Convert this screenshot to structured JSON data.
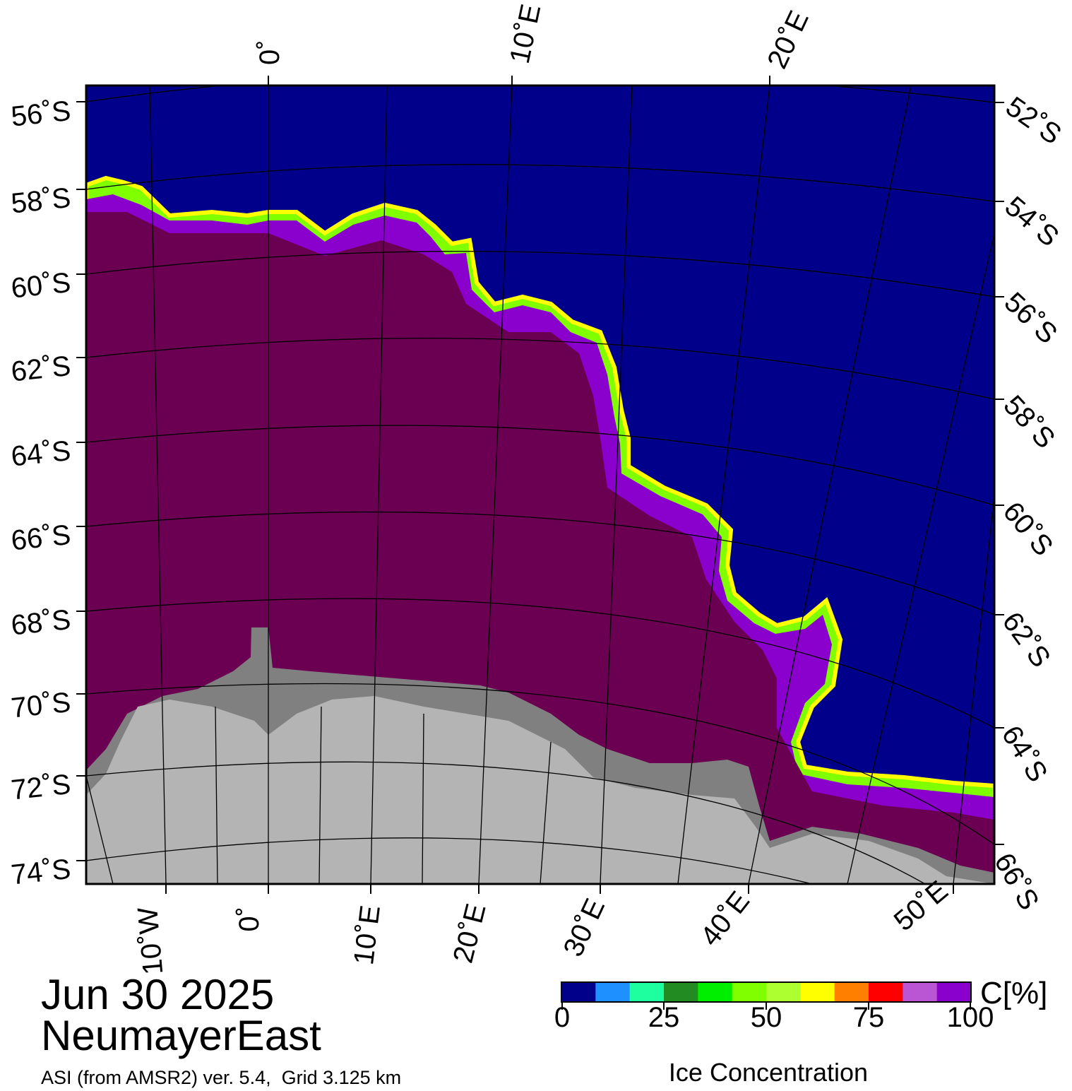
{
  "map": {
    "date": "Jun 30 2025",
    "region": "NeumayerEast",
    "source": "ASI (from AMSR2) ver. 5.4,  Grid 3.125 km",
    "colors": {
      "open_water": "#00008b",
      "ice_full": "#6b0052",
      "ice_high": "#8a00cc",
      "land_shelf": "#808080",
      "land": "#b4b4b4",
      "frame": "#000000"
    },
    "top_lon_labels": [
      "0˚",
      "10˚E",
      "20˚E"
    ],
    "bottom_lon_labels": [
      "10˚W",
      "0˚",
      "10˚E",
      "20˚E",
      "30˚E",
      "40˚E",
      "50˚E"
    ],
    "left_lat_labels": [
      "56˚S",
      "58˚S",
      "60˚S",
      "62˚S",
      "64˚S",
      "66˚S",
      "68˚S",
      "70˚S",
      "72˚S",
      "74˚S"
    ],
    "right_lat_labels": [
      "52˚S",
      "54˚S",
      "56˚S",
      "58˚S",
      "60˚S",
      "62˚S",
      "64˚S",
      "66˚S"
    ]
  },
  "colorbar": {
    "unit": "C[%]",
    "title": "Ice Concentration",
    "ticks": [
      "0",
      "25",
      "50",
      "75",
      "100"
    ],
    "range": [
      0,
      100
    ],
    "colors": [
      "#00008b",
      "#1e90ff",
      "#1effa0",
      "#228b22",
      "#00ee00",
      "#7fff00",
      "#adff2f",
      "#ffff00",
      "#ff7f00",
      "#ff0000",
      "#ba55d3",
      "#8a00cc"
    ]
  }
}
